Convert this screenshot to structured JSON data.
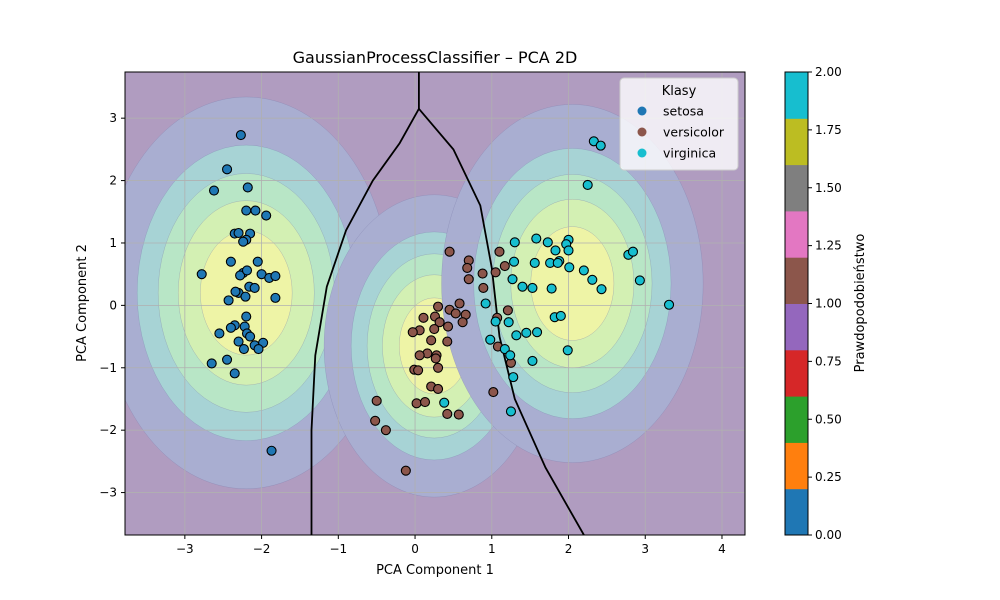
{
  "chart_data": {
    "type": "scatter",
    "title": "GaussianProcessClassifier – PCA 2D",
    "xlabel": "PCA Component 1",
    "ylabel": "PCA Component 2",
    "xlim": [
      -3.78,
      4.3
    ],
    "ylim": [
      -3.68,
      3.74
    ],
    "xticks": [
      -3,
      -2,
      -1,
      0,
      1,
      2,
      3,
      4
    ],
    "yticks": [
      -3,
      -2,
      -1,
      0,
      1,
      2,
      3
    ],
    "grid": true,
    "legend": {
      "title": "Klasy",
      "placement": "top-right"
    },
    "colorbar": {
      "label": "Prawdopodobieństwo",
      "range": [
        0,
        2
      ],
      "ticks": [
        "0.00",
        "0.25",
        "0.50",
        "0.75",
        "1.00",
        "1.25",
        "1.50",
        "1.75",
        "2.00"
      ],
      "colors": [
        "#1f77b4",
        "#ff7f0e",
        "#2ca02c",
        "#d62728",
        "#9467bd",
        "#8c564b",
        "#e377c2",
        "#7f7f7f",
        "#bcbd22",
        "#17becf"
      ]
    },
    "background": {
      "description_colors": [
        "#b09cc0",
        "#a9aed1",
        "#a7d3d5",
        "#b8e6c6",
        "#d3f0b3",
        "#eef4a6"
      ],
      "centers": [
        {
          "class": "setosa",
          "x": -2.2,
          "y": 0.2,
          "sx": 1.05,
          "sy": 1.75
        },
        {
          "class": "versicolor",
          "x": 0.25,
          "y": -0.65,
          "sx": 0.8,
          "sy": 1.35
        },
        {
          "class": "virginica",
          "x": 2.05,
          "y": 0.35,
          "sx": 0.95,
          "sy": 1.6
        }
      ]
    },
    "decision_boundary": {
      "left": [
        [
          0.05,
          3.74
        ],
        [
          0.05,
          3.15
        ],
        [
          -0.2,
          2.6
        ],
        [
          -0.55,
          2.0
        ],
        [
          -0.9,
          1.2
        ],
        [
          -1.15,
          0.3
        ],
        [
          -1.3,
          -0.8
        ],
        [
          -1.35,
          -2.0
        ],
        [
          -1.35,
          -3.68
        ]
      ],
      "right": [
        [
          0.05,
          3.15
        ],
        [
          0.5,
          2.5
        ],
        [
          0.85,
          1.6
        ],
        [
          1.0,
          0.6
        ],
        [
          1.1,
          -0.5
        ],
        [
          1.3,
          -1.5
        ],
        [
          1.7,
          -2.6
        ],
        [
          2.2,
          -3.68
        ]
      ]
    },
    "series": [
      {
        "name": "setosa",
        "color": "#1f77b4",
        "points": [
          [
            -2.27,
            2.73
          ],
          [
            -2.45,
            2.18
          ],
          [
            -2.62,
            1.84
          ],
          [
            -2.18,
            1.89
          ],
          [
            -2.2,
            1.52
          ],
          [
            -2.08,
            1.52
          ],
          [
            -1.94,
            1.44
          ],
          [
            -2.35,
            1.15
          ],
          [
            -2.3,
            1.16
          ],
          [
            -2.15,
            1.15
          ],
          [
            -2.2,
            1.05
          ],
          [
            -2.24,
            1.02
          ],
          [
            -2.4,
            0.7
          ],
          [
            -2.05,
            0.7
          ],
          [
            -2.78,
            0.5
          ],
          [
            -2.24,
            0.52
          ],
          [
            -2.28,
            0.48
          ],
          [
            -2.19,
            0.56
          ],
          [
            -2.0,
            0.5
          ],
          [
            -1.9,
            0.44
          ],
          [
            -1.82,
            0.47
          ],
          [
            -2.16,
            0.3
          ],
          [
            -2.09,
            0.28
          ],
          [
            -2.3,
            0.2
          ],
          [
            -2.21,
            0.14
          ],
          [
            -2.43,
            0.08
          ],
          [
            -2.34,
            0.22
          ],
          [
            -1.82,
            0.12
          ],
          [
            -2.2,
            -0.18
          ],
          [
            -2.35,
            -0.32
          ],
          [
            -2.4,
            -0.36
          ],
          [
            -2.22,
            -0.34
          ],
          [
            -2.55,
            -0.45
          ],
          [
            -2.19,
            -0.45
          ],
          [
            -2.15,
            -0.5
          ],
          [
            -2.3,
            -0.58
          ],
          [
            -2.09,
            -0.64
          ],
          [
            -1.98,
            -0.6
          ],
          [
            -2.04,
            -0.7
          ],
          [
            -2.23,
            -0.7
          ],
          [
            -2.45,
            -0.87
          ],
          [
            -2.65,
            -0.93
          ],
          [
            -2.35,
            -1.09
          ],
          [
            -1.87,
            -2.33
          ]
        ]
      },
      {
        "name": "versicolor",
        "color": "#8c564b",
        "points": [
          [
            0.45,
            0.86
          ],
          [
            1.1,
            0.86
          ],
          [
            0.7,
            0.72
          ],
          [
            0.68,
            0.6
          ],
          [
            0.88,
            0.51
          ],
          [
            1.05,
            0.53
          ],
          [
            0.7,
            0.42
          ],
          [
            0.89,
            0.28
          ],
          [
            1.17,
            0.63
          ],
          [
            0.58,
            0.03
          ],
          [
            0.45,
            -0.07
          ],
          [
            0.3,
            -0.02
          ],
          [
            0.53,
            -0.13
          ],
          [
            0.66,
            -0.15
          ],
          [
            0.26,
            -0.18
          ],
          [
            0.11,
            -0.2
          ],
          [
            0.32,
            -0.27
          ],
          [
            0.62,
            -0.27
          ],
          [
            0.43,
            -0.34
          ],
          [
            1.07,
            -0.2
          ],
          [
            1.21,
            -0.08
          ],
          [
            0.06,
            -0.4
          ],
          [
            0.25,
            -0.38
          ],
          [
            -0.03,
            -0.43
          ],
          [
            0.21,
            -0.56
          ],
          [
            0.42,
            -0.58
          ],
          [
            1.08,
            -0.66
          ],
          [
            0.16,
            -0.77
          ],
          [
            0.28,
            -0.8
          ],
          [
            0.06,
            -0.8
          ],
          [
            0.27,
            -0.85
          ],
          [
            1.25,
            -0.92
          ],
          [
            -0.01,
            -1.03
          ],
          [
            0.3,
            -1.0
          ],
          [
            0.04,
            -1.04
          ],
          [
            0.21,
            -1.3
          ],
          [
            0.3,
            -1.34
          ],
          [
            1.02,
            -1.39
          ],
          [
            -0.5,
            -1.53
          ],
          [
            0.02,
            -1.57
          ],
          [
            0.13,
            -1.55
          ],
          [
            0.42,
            -1.74
          ],
          [
            0.57,
            -1.75
          ],
          [
            -0.52,
            -1.85
          ],
          [
            -0.38,
            -2.0
          ],
          [
            -0.12,
            -2.65
          ]
        ]
      },
      {
        "name": "virginica",
        "color": "#17becf",
        "points": [
          [
            2.33,
            2.63
          ],
          [
            2.42,
            2.56
          ],
          [
            2.25,
            1.93
          ],
          [
            1.58,
            1.07
          ],
          [
            1.3,
            1.01
          ],
          [
            1.73,
            1.01
          ],
          [
            2.0,
            1.05
          ],
          [
            1.97,
            0.98
          ],
          [
            1.83,
            0.88
          ],
          [
            2.0,
            0.88
          ],
          [
            2.78,
            0.81
          ],
          [
            2.84,
            0.86
          ],
          [
            1.88,
            0.71
          ],
          [
            1.56,
            0.68
          ],
          [
            1.76,
            0.68
          ],
          [
            1.86,
            0.68
          ],
          [
            1.29,
            0.7
          ],
          [
            2.01,
            0.61
          ],
          [
            2.2,
            0.56
          ],
          [
            2.31,
            0.41
          ],
          [
            1.27,
            0.42
          ],
          [
            1.4,
            0.3
          ],
          [
            1.53,
            0.28
          ],
          [
            1.78,
            0.27
          ],
          [
            2.43,
            0.26
          ],
          [
            2.93,
            0.4
          ],
          [
            3.31,
            0.01
          ],
          [
            0.92,
            0.03
          ],
          [
            1.05,
            -0.26
          ],
          [
            1.22,
            -0.27
          ],
          [
            1.45,
            -0.44
          ],
          [
            1.59,
            -0.43
          ],
          [
            1.82,
            -0.19
          ],
          [
            1.9,
            -0.17
          ],
          [
            1.32,
            -0.48
          ],
          [
            0.98,
            -0.55
          ],
          [
            1.17,
            -0.7
          ],
          [
            1.24,
            -0.8
          ],
          [
            1.53,
            -0.89
          ],
          [
            1.99,
            -0.72
          ],
          [
            1.28,
            -1.15
          ],
          [
            0.38,
            -1.56
          ],
          [
            1.25,
            -1.7
          ]
        ]
      }
    ]
  }
}
